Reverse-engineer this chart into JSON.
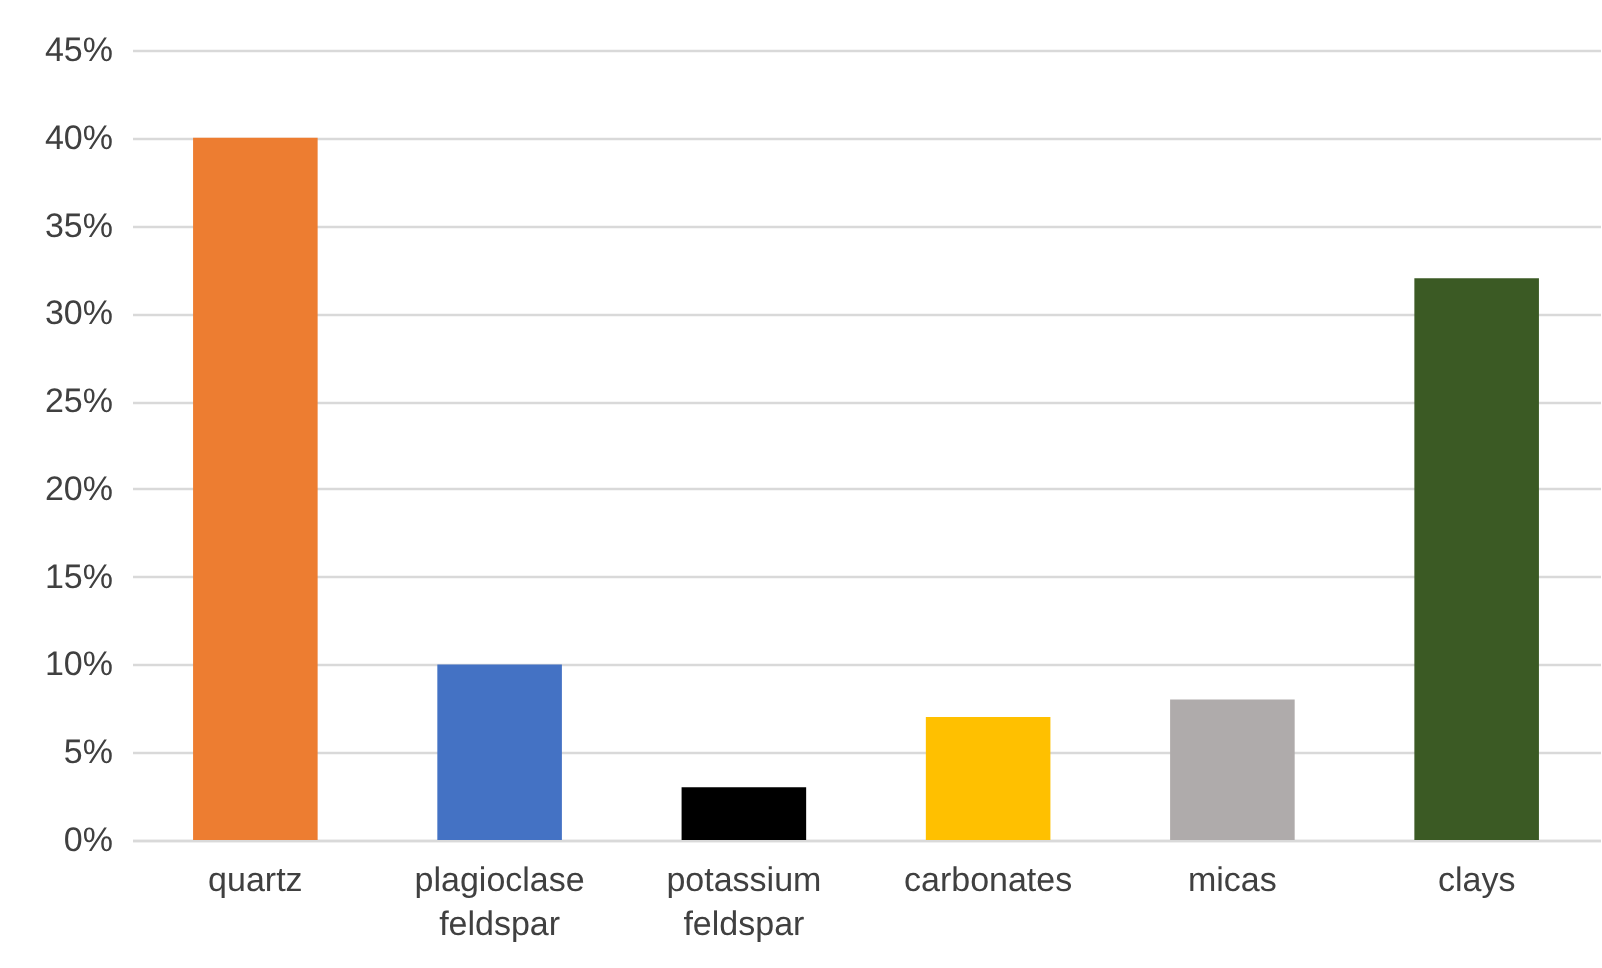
{
  "chart_data": {
    "type": "bar",
    "categories": [
      "quartz",
      "plagioclase feldspar",
      "potassium feldspar",
      "carbonates",
      "micas",
      "clays"
    ],
    "values": [
      40,
      10,
      3,
      7,
      8,
      32
    ],
    "colors": [
      "#ed7d31",
      "#4472c4",
      "#000000",
      "#ffc000",
      "#afabab",
      "#3b5a24"
    ],
    "ylim": [
      0,
      45
    ],
    "yticks": [
      {
        "value": 0,
        "label": "0%"
      },
      {
        "value": 5,
        "label": "5%"
      },
      {
        "value": 10,
        "label": "10%"
      },
      {
        "value": 15,
        "label": "15%"
      },
      {
        "value": 20,
        "label": "20%"
      },
      {
        "value": 25,
        "label": "25%"
      },
      {
        "value": 30,
        "label": "30%"
      },
      {
        "value": 35,
        "label": "35%"
      },
      {
        "value": 40,
        "label": "40%"
      },
      {
        "value": 45,
        "label": "45%"
      }
    ],
    "grid": true
  }
}
